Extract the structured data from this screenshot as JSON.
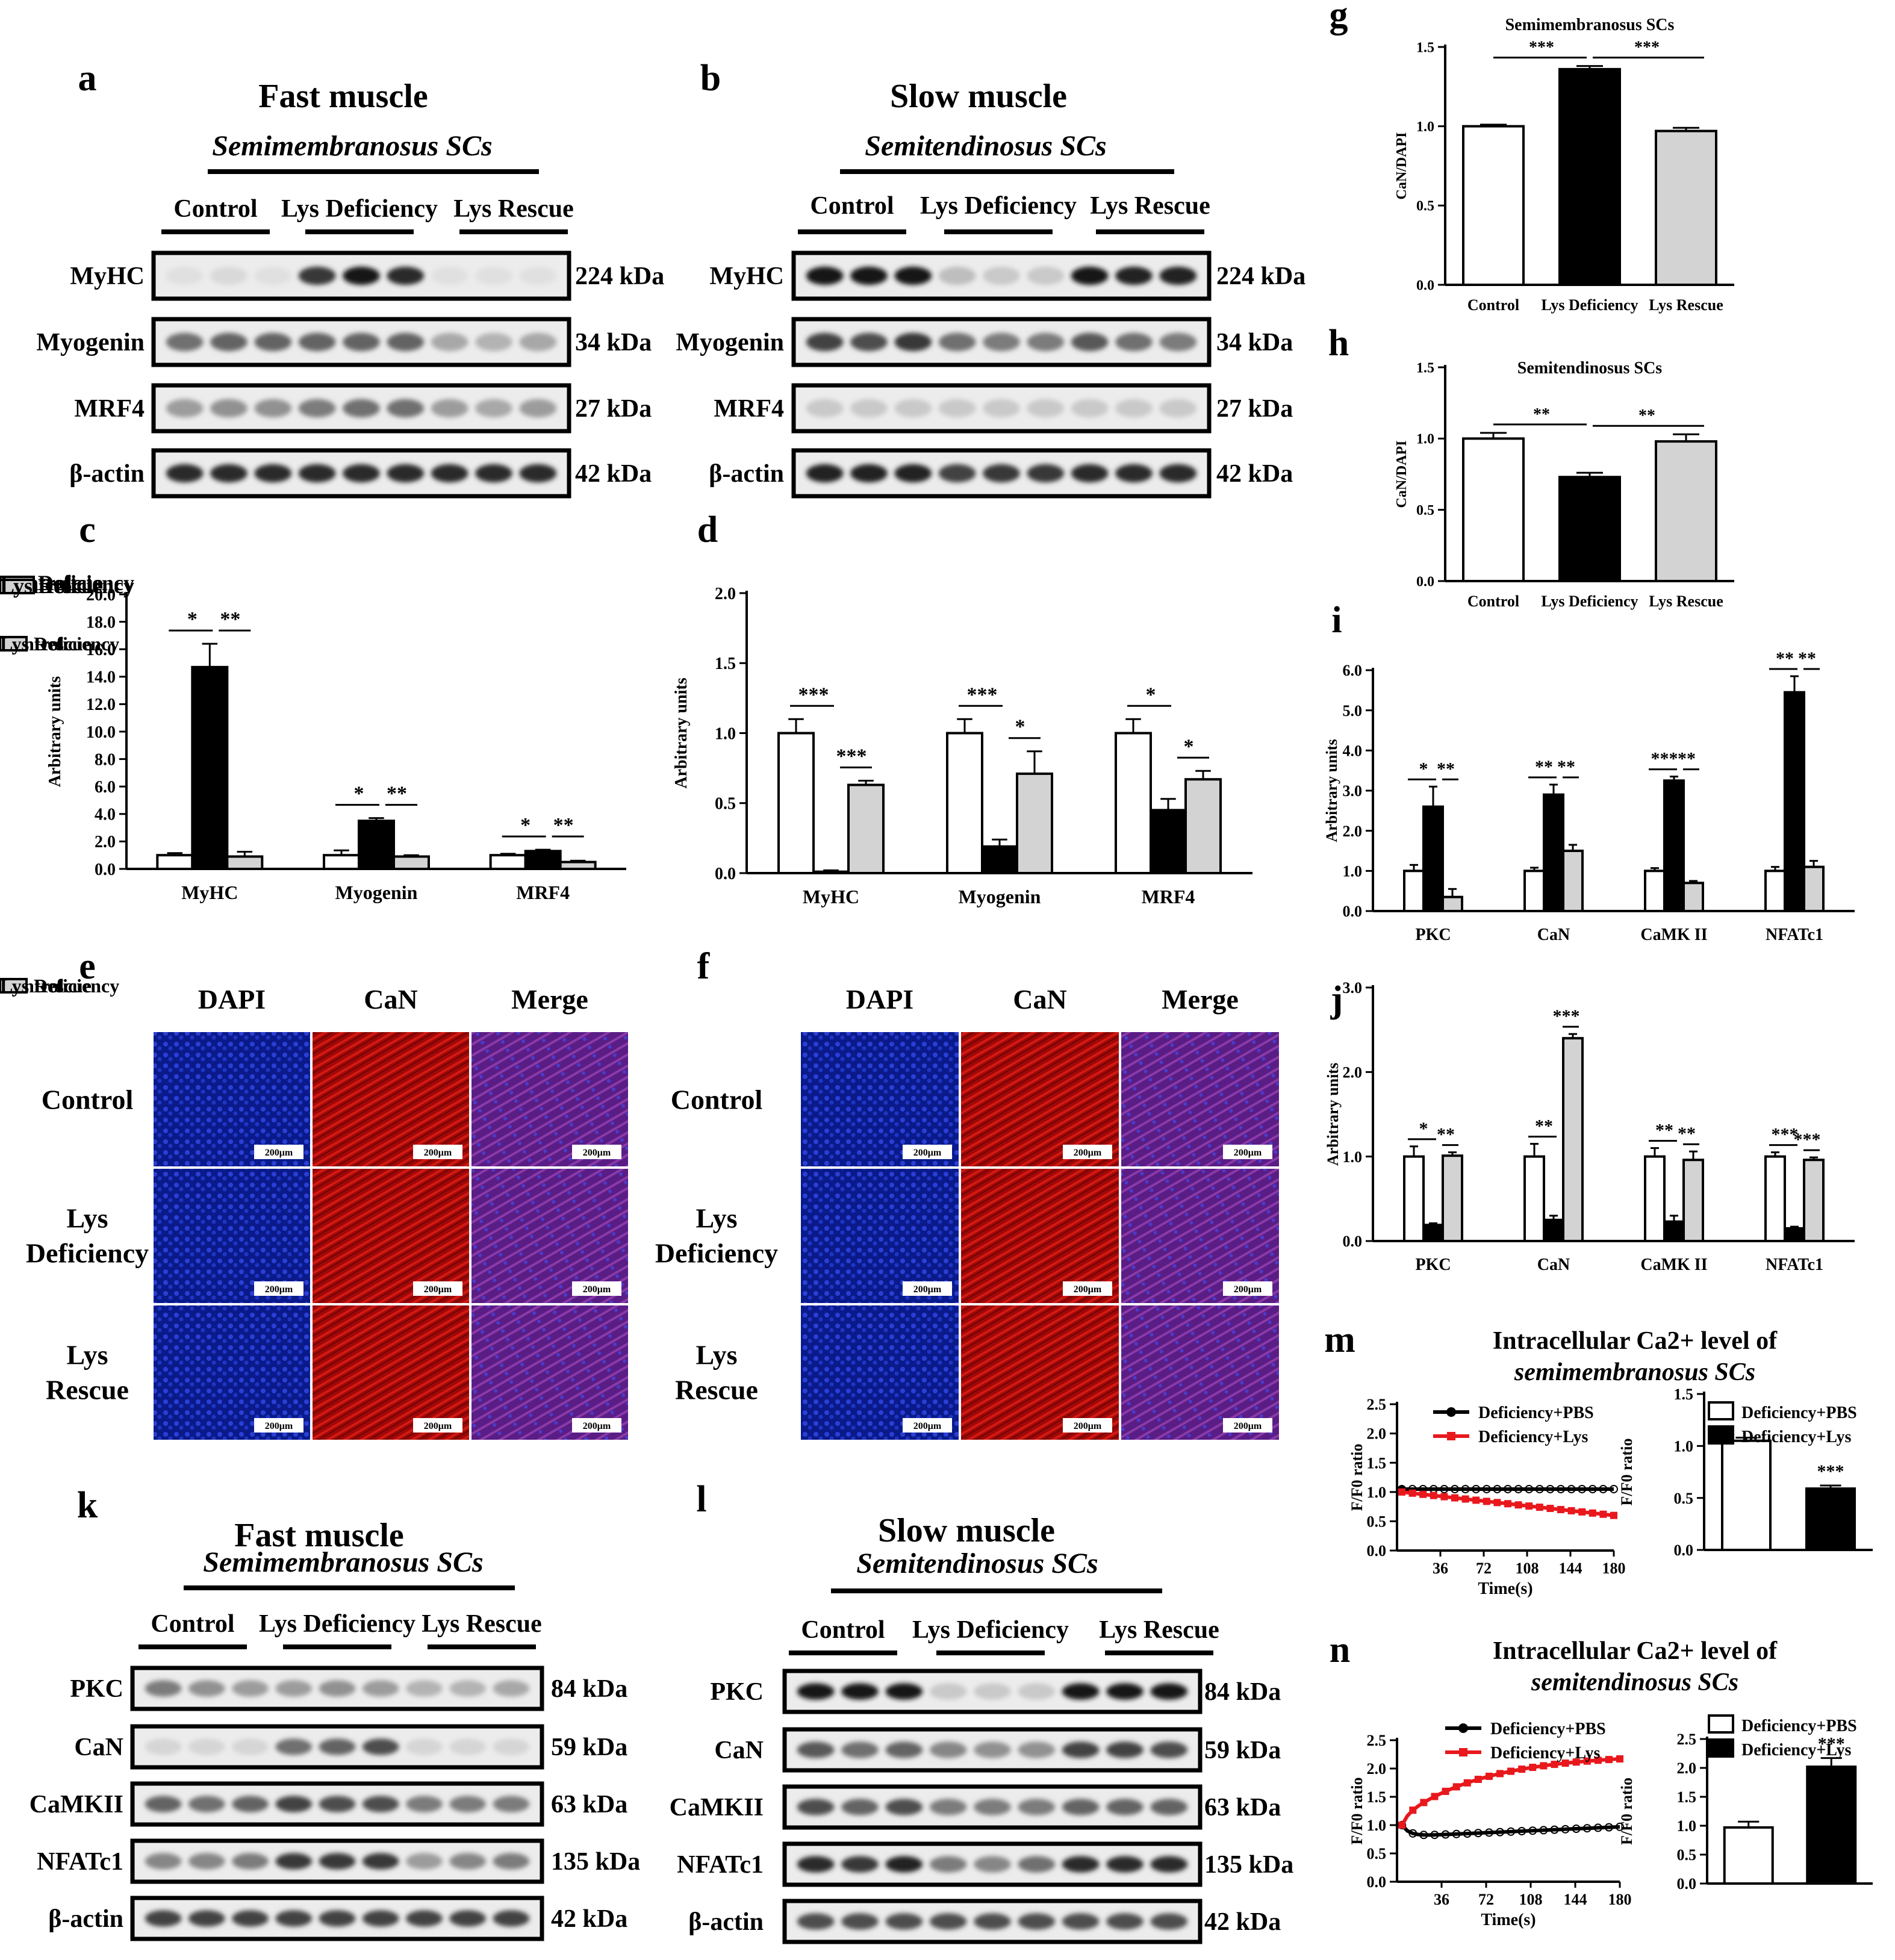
{
  "panels": {
    "a": {
      "letter": "a",
      "title": "Fast muscle",
      "subtitle": "Semimembranosus SCs",
      "groups": [
        "Control",
        "Lys Deficiency",
        "Lys Rescue"
      ],
      "bands": [
        {
          "name": "MyHC",
          "size": "224 kDa"
        },
        {
          "name": "Myogenin",
          "size": "34 kDa"
        },
        {
          "name": "MRF4",
          "size": "27 kDa"
        },
        {
          "name": "β-actin",
          "size": "42 kDa"
        }
      ]
    },
    "b": {
      "letter": "b",
      "title": "Slow muscle",
      "subtitle": "Semitendinosus SCs",
      "groups": [
        "Control",
        "Lys Deficiency",
        "Lys Rescue"
      ],
      "bands": [
        {
          "name": "MyHC",
          "size": "224 kDa"
        },
        {
          "name": "Myogenin",
          "size": "34 kDa"
        },
        {
          "name": "MRF4",
          "size": "27 kDa"
        },
        {
          "name": "β-actin",
          "size": "42 kDa"
        }
      ]
    },
    "e": {
      "letter": "e",
      "columns": [
        "DAPI",
        "CaN",
        "Merge"
      ],
      "rows": [
        "Control",
        "Lys Deficiency",
        "Lys Rescue"
      ],
      "scale_bar": "200μm"
    },
    "f": {
      "letter": "f",
      "columns": [
        "DAPI",
        "CaN",
        "Merge"
      ],
      "rows": [
        "Control",
        "Lys Deficiency",
        "Lys Rescue"
      ],
      "scale_bar": "200μm"
    },
    "k": {
      "letter": "k",
      "title": "Fast muscle",
      "subtitle": "Semimembranosus SCs",
      "groups": [
        "Control",
        "Lys Deficiency",
        "Lys Rescue"
      ],
      "bands": [
        {
          "name": "PKC",
          "size": "84 kDa"
        },
        {
          "name": "CaN",
          "size": "59 kDa"
        },
        {
          "name": "CaMKII",
          "size": "63 kDa"
        },
        {
          "name": "NFATc1",
          "size": "135 kDa"
        },
        {
          "name": "β-actin",
          "size": "42 kDa"
        }
      ]
    },
    "l": {
      "letter": "l",
      "title": "Slow muscle",
      "subtitle": "Semitendinosus SCs",
      "groups": [
        "Control",
        "Lys Deficiency",
        "Lys Rescue"
      ],
      "bands": [
        {
          "name": "PKC",
          "size": "84 kDa"
        },
        {
          "name": "CaN",
          "size": "59 kDa"
        },
        {
          "name": "CaMKII",
          "size": "63 kDa"
        },
        {
          "name": "NFATc1",
          "size": "135 kDa"
        },
        {
          "name": "β-actin",
          "size": "42 kDa"
        }
      ]
    }
  },
  "colors": {
    "control": "#ffffff",
    "deficiency": "#000000",
    "rescue": "#d3d3d3",
    "line_lys": "#e8181d",
    "line_pbs": "#000000"
  },
  "chart_data": [
    {
      "id": "c",
      "letter": "c",
      "type": "bar",
      "ylabel": "Arbitrary units",
      "ylim": [
        0,
        20
      ],
      "yticks": [
        "0.0",
        "2.0",
        "4.0",
        "6.0",
        "8.0",
        "10.0",
        "12.0",
        "14.0",
        "16.0",
        "18.0",
        "20.0"
      ],
      "categories": [
        "MyHC",
        "Myogenin",
        "MRF4"
      ],
      "series": [
        {
          "name": "Control",
          "values": [
            1.0,
            1.0,
            1.0
          ],
          "errors": [
            0.15,
            0.35,
            0.1
          ]
        },
        {
          "name": "Lys Deficiency",
          "values": [
            14.7,
            3.5,
            1.3
          ],
          "errors": [
            1.7,
            0.2,
            0.1
          ]
        },
        {
          "name": "Lys Rescue",
          "values": [
            0.9,
            0.9,
            0.5
          ],
          "errors": [
            0.35,
            0.1,
            0.1
          ]
        }
      ],
      "sig": [
        [
          "*",
          "**"
        ],
        [
          "*",
          "**"
        ],
        [
          "*",
          "**"
        ]
      ]
    },
    {
      "id": "d",
      "letter": "d",
      "type": "bar",
      "ylabel": "Arbitrary units",
      "ylim": [
        0,
        2
      ],
      "yticks": [
        "0.0",
        "0.5",
        "1.0",
        "1.5",
        "2.0"
      ],
      "categories": [
        "MyHC",
        "Myogenin",
        "MRF4"
      ],
      "series": [
        {
          "name": "Control",
          "values": [
            1.0,
            1.0,
            1.0
          ],
          "errors": [
            0.1,
            0.1,
            0.1
          ]
        },
        {
          "name": "Lys Deficiency",
          "values": [
            0.01,
            0.19,
            0.45
          ],
          "errors": [
            0.01,
            0.05,
            0.08
          ]
        },
        {
          "name": "Lys Rescue",
          "values": [
            0.63,
            0.71,
            0.67
          ],
          "errors": [
            0.03,
            0.16,
            0.06
          ]
        }
      ],
      "sig": [
        [
          "***",
          "***"
        ],
        [
          "***",
          "*"
        ],
        [
          "*",
          "*"
        ]
      ]
    },
    {
      "id": "g",
      "letter": "g",
      "type": "bar",
      "title": "Semimembranosus SCs",
      "ylabel": "CaN/DAPI",
      "ylim": [
        0,
        1.5
      ],
      "yticks": [
        "0.0",
        "0.5",
        "1.0",
        "1.5"
      ],
      "categories": [
        "Control",
        "Lys Deficiency",
        "Lys Rescue"
      ],
      "values": [
        1.0,
        1.36,
        0.97
      ],
      "errors": [
        0.01,
        0.02,
        0.02
      ],
      "sig": [
        "***",
        "***"
      ]
    },
    {
      "id": "h",
      "letter": "h",
      "type": "bar",
      "title": "Semitendinosus SCs",
      "ylabel": "CaN/DAPI",
      "ylim": [
        0,
        1.5
      ],
      "yticks": [
        "0.0",
        "0.5",
        "1.0",
        "1.5"
      ],
      "categories": [
        "Control",
        "Lys Deficiency",
        "Lys Rescue"
      ],
      "values": [
        1.0,
        0.73,
        0.98
      ],
      "errors": [
        0.04,
        0.03,
        0.05
      ],
      "sig": [
        "**",
        "**"
      ]
    },
    {
      "id": "i",
      "letter": "i",
      "type": "bar",
      "ylabel": "Arbitrary units",
      "ylim": [
        0,
        6
      ],
      "yticks": [
        "0.0",
        "1.0",
        "2.0",
        "3.0",
        "4.0",
        "5.0",
        "6.0"
      ],
      "categories": [
        "PKC",
        "CaN",
        "CaMK II",
        "NFATc1"
      ],
      "series": [
        {
          "name": "Control",
          "values": [
            1.0,
            1.0,
            1.0,
            1.0
          ],
          "errors": [
            0.15,
            0.08,
            0.07,
            0.1
          ]
        },
        {
          "name": "Lys Deficiency",
          "values": [
            2.6,
            2.9,
            3.25,
            5.45
          ],
          "errors": [
            0.5,
            0.25,
            0.1,
            0.4
          ]
        },
        {
          "name": "Lys Rescue",
          "values": [
            0.35,
            1.5,
            0.7,
            1.1
          ],
          "errors": [
            0.2,
            0.15,
            0.05,
            0.15
          ]
        }
      ],
      "sig": [
        [
          "*",
          "**"
        ],
        [
          "**",
          "**"
        ],
        [
          "***",
          "**"
        ],
        [
          "**",
          "**"
        ]
      ]
    },
    {
      "id": "j",
      "letter": "j",
      "type": "bar",
      "ylabel": "Arbitrary units",
      "ylim": [
        0,
        3
      ],
      "yticks": [
        "0.0",
        "1.0",
        "2.0",
        "3.0"
      ],
      "categories": [
        "PKC",
        "CaN",
        "CaMK II",
        "NFATc1"
      ],
      "series": [
        {
          "name": "Control",
          "values": [
            1.0,
            1.0,
            1.0,
            1.0
          ],
          "errors": [
            0.12,
            0.15,
            0.1,
            0.05
          ]
        },
        {
          "name": "Lys Deficiency",
          "values": [
            0.19,
            0.25,
            0.23,
            0.15
          ],
          "errors": [
            0.02,
            0.05,
            0.07,
            0.02
          ]
        },
        {
          "name": "Lys Rescue",
          "values": [
            1.01,
            2.4,
            0.96,
            0.96
          ],
          "errors": [
            0.04,
            0.05,
            0.1,
            0.03
          ]
        }
      ],
      "sig": [
        [
          "*",
          "**"
        ],
        [
          "**",
          "***"
        ],
        [
          "**",
          "**"
        ],
        [
          "***",
          "***"
        ]
      ]
    },
    {
      "id": "m_line",
      "letter": "m",
      "type": "line",
      "title1": "Intracellular Ca2+ level of",
      "title2": "semimembranosus SCs",
      "ylabel": "F/F0 ratio",
      "xlabel": "Time(s)",
      "ylim": [
        0,
        2.5
      ],
      "xlim": [
        0,
        180
      ],
      "yticks": [
        "0.0",
        "0.5",
        "1.0",
        "1.5",
        "2.0",
        "2.5"
      ],
      "xticks": [
        "36",
        "72",
        "108",
        "144",
        "180"
      ],
      "series": [
        {
          "name": "Deficiency+PBS",
          "start": 1.05,
          "end": 1.05,
          "shape": "flat"
        },
        {
          "name": "Deficiency+Lys",
          "start": 1.0,
          "end": 0.6,
          "shape": "linear"
        }
      ]
    },
    {
      "id": "m_bar",
      "type": "bar",
      "ylabel": "F/F0 ratio",
      "ylim": [
        0,
        1.5
      ],
      "yticks": [
        "0.0",
        "0.5",
        "1.0",
        "1.5"
      ],
      "categories": [
        "Deficiency+PBS",
        "Deficiency+Lys"
      ],
      "values": [
        1.05,
        0.59
      ],
      "errors": [
        0.03,
        0.03
      ],
      "sig": "***"
    },
    {
      "id": "n_line",
      "letter": "n",
      "type": "line",
      "title1": "Intracellular Ca2+ level of",
      "title2": "semitendinosus SCs",
      "ylabel": "F/F0 ratio",
      "xlabel": "Time(s)",
      "ylim": [
        0,
        2.5
      ],
      "xlim": [
        0,
        180
      ],
      "yticks": [
        "0.0",
        "0.5",
        "1.0",
        "1.5",
        "2.0",
        "2.5"
      ],
      "xticks": [
        "36",
        "72",
        "108",
        "144",
        "180"
      ],
      "series": [
        {
          "name": "Deficiency+PBS",
          "start": 1.0,
          "end": 0.97,
          "shape": "dip"
        },
        {
          "name": "Deficiency+Lys",
          "start": 1.0,
          "end": 2.02,
          "shape": "rise"
        }
      ]
    },
    {
      "id": "n_bar",
      "type": "bar",
      "ylabel": "F/F0 ratio",
      "ylim": [
        0,
        2.5
      ],
      "yticks": [
        "0.0",
        "0.5",
        "1.0",
        "1.5",
        "2.0",
        "2.5"
      ],
      "categories": [
        "Deficiency+PBS",
        "Deficiency+Lys"
      ],
      "values": [
        0.97,
        2.02
      ],
      "errors": [
        0.1,
        0.15
      ],
      "sig": "***"
    }
  ]
}
